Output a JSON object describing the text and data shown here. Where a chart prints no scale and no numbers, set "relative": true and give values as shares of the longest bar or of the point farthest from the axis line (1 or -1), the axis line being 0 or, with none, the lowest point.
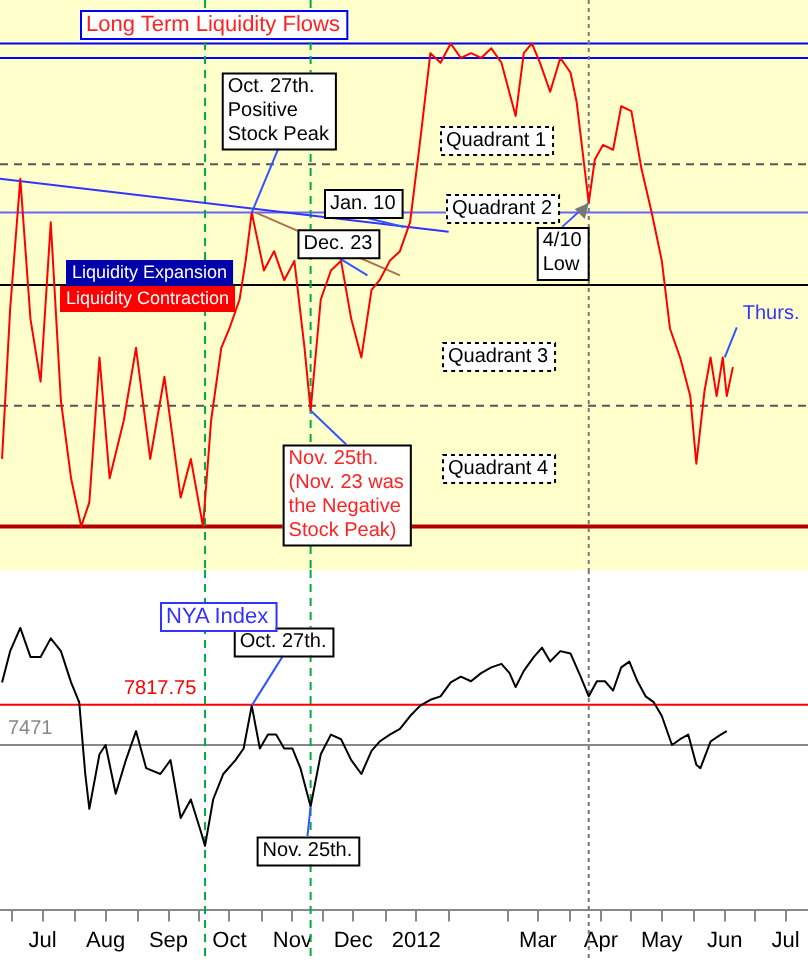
{
  "chart_data": [
    {
      "type": "line",
      "title": "Long Term Liquidity Flows",
      "relative": true,
      "tick_labels": false,
      "legend": false,
      "marker": "none",
      "grid": false,
      "xlim": [
        "2011-06-25",
        "2012-07-27"
      ],
      "series": [
        {
          "color": "#ff0000",
          "x": [
            "2011-06-26",
            "2011-06-30",
            "2011-07-05",
            "2011-07-10",
            "2011-07-15",
            "2011-07-20",
            "2011-07-25",
            "2011-07-30",
            "2011-08-04",
            "2011-08-08",
            "2011-08-13",
            "2011-08-18",
            "2011-08-25",
            "2011-08-31",
            "2011-09-07",
            "2011-09-14",
            "2011-09-22",
            "2011-09-27",
            "2011-10-03",
            "2011-10-07",
            "2011-10-12",
            "2011-10-16",
            "2011-10-21",
            "2011-10-24",
            "2011-10-27",
            "2011-11-02",
            "2011-11-07",
            "2011-11-12",
            "2011-11-17",
            "2011-11-22",
            "2011-11-25",
            "2011-11-30",
            "2011-12-05",
            "2011-12-10",
            "2011-12-15",
            "2011-12-20",
            "2011-12-25",
            "2011-12-29",
            "2012-01-03",
            "2012-01-08",
            "2012-01-13",
            "2012-01-18",
            "2012-01-23",
            "2012-01-28",
            "2012-02-02",
            "2012-02-07",
            "2012-02-12",
            "2012-02-17",
            "2012-02-22",
            "2012-02-27",
            "2012-03-05",
            "2012-03-09",
            "2012-03-13",
            "2012-03-17",
            "2012-03-22",
            "2012-03-27",
            "2012-04-01",
            "2012-04-04",
            "2012-04-10",
            "2012-04-13",
            "2012-04-17",
            "2012-04-22",
            "2012-04-26",
            "2012-05-01",
            "2012-05-06",
            "2012-05-11",
            "2012-05-16",
            "2012-05-20",
            "2012-05-25",
            "2012-05-30",
            "2012-06-02",
            "2012-06-06",
            "2012-06-09",
            "2012-06-12",
            "2012-06-15",
            "2012-06-17",
            "2012-06-20"
          ],
          "values": [
            0.14,
            0.45,
            0.72,
            0.43,
            0.3,
            0.63,
            0.26,
            0.1,
            0,
            0.05,
            0.35,
            0.1,
            0.22,
            0.37,
            0.14,
            0.31,
            0.06,
            0.14,
            0,
            0.22,
            0.37,
            0.41,
            0.47,
            0.55,
            0.65,
            0.53,
            0.57,
            0.51,
            0.55,
            0.37,
            0.24,
            0.47,
            0.53,
            0.55,
            0.43,
            0.35,
            0.49,
            0.51,
            0.55,
            0.57,
            0.63,
            0.8,
            0.98,
            0.96,
            1,
            0.97,
            0.98,
            0.97,
            0.99,
            0.96,
            0.85,
            0.98,
            1,
            0.96,
            0.9,
            0.97,
            0.94,
            0.88,
            0.67,
            0.76,
            0.79,
            0.78,
            0.87,
            0.86,
            0.74,
            0.65,
            0.55,
            0.41,
            0.35,
            0.27,
            0.13,
            0.28,
            0.35,
            0.27,
            0.35,
            0.27,
            0.33
          ]
        },
        {
          "type": "line",
          "color": "#3333ff",
          "x": [
            "2011-06-25",
            "2012-02-01"
          ],
          "values": [
            0.72,
            0.61
          ]
        },
        {
          "type": "line",
          "color": "#b07050",
          "x": [
            "2011-10-29",
            "2012-01-08"
          ],
          "values": [
            0.65,
            0.52
          ]
        }
      ],
      "ref_lines": [
        {
          "axis": "y",
          "value": 1,
          "color": "#0000ff"
        },
        {
          "axis": "y",
          "value": 0.97,
          "color": "#0000ff"
        },
        {
          "axis": "y",
          "value": 0.75,
          "color": "#555555",
          "line_style": "dashed"
        },
        {
          "axis": "y",
          "value": 0.65,
          "color": "#6666ff"
        },
        {
          "axis": "y",
          "value": 0.5,
          "color": "#000000"
        },
        {
          "axis": "y",
          "value": 0.25,
          "color": "#555555",
          "line_style": "dashed"
        },
        {
          "axis": "x",
          "value": "2011-10-04",
          "color": "#00aa44",
          "line_style": "dashed"
        },
        {
          "axis": "x",
          "value": "2011-11-25",
          "color": "#00aa44",
          "line_style": "dashed"
        },
        {
          "axis": "x",
          "value": "2012-04-10",
          "color": "#777777",
          "line_style": "dotted"
        }
      ],
      "annotations": [
        {
          "text": "Oct. 27th.\nPositive\nStock Peak",
          "x": "2011-10-27",
          "y": 0.65
        },
        {
          "text": "Jan. 10",
          "x": "2012-01-10",
          "y": 0.62
        },
        {
          "text": "Dec. 23",
          "x": "2011-12-23",
          "y": 0.52
        },
        {
          "text": "4/10\nLow",
          "x": "2012-04-10",
          "y": 0.67
        },
        {
          "text": "Nov. 25th.\n(Nov. 23 was\nthe Negative\nStock Peak)",
          "x": "2011-11-25",
          "y": 0.24
        },
        {
          "text": "Thurs.",
          "x": "2012-06-16",
          "y": 0.35
        },
        "Quadrant 1",
        "Quadrant 2",
        "Quadrant 3",
        "Quadrant 4",
        "Liquidity Expansion",
        "Liquidity Contraction"
      ]
    },
    {
      "type": "line",
      "title": "NYA Index",
      "tick_labels": "x",
      "legend": false,
      "marker": "none",
      "grid": false,
      "xlim": [
        "2011-06-25",
        "2012-07-27"
      ],
      "ylim": [
        6050,
        8980
      ],
      "xticks": [
        {
          "value": "2011-07-01",
          "label": null
        },
        {
          "value": "2011-07-16",
          "label": "Jul"
        },
        {
          "value": "2011-08-01",
          "label": null
        },
        {
          "value": "2011-08-16",
          "label": "Aug"
        },
        {
          "value": "2011-09-01",
          "label": null
        },
        {
          "value": "2011-09-16",
          "label": "Sep"
        },
        {
          "value": "2011-10-01",
          "label": null
        },
        {
          "value": "2011-10-16",
          "label": "Oct"
        },
        {
          "value": "2011-11-01",
          "label": null
        },
        {
          "value": "2011-11-16",
          "label": "Nov"
        },
        {
          "value": "2011-12-01",
          "label": null
        },
        {
          "value": "2011-12-16",
          "label": "Dec"
        },
        {
          "value": "2012-01-01",
          "label": null
        },
        {
          "value": "2012-01-16",
          "label": "2012"
        },
        {
          "value": "2012-02-01",
          "label": null
        },
        {
          "value": "2012-03-01",
          "label": null
        },
        {
          "value": "2012-03-16",
          "label": "Mar"
        },
        {
          "value": "2012-04-01",
          "label": null
        },
        {
          "value": "2012-04-16",
          "label": "Apr"
        },
        {
          "value": "2012-05-01",
          "label": null
        },
        {
          "value": "2012-05-16",
          "label": "May"
        },
        {
          "value": "2012-06-01",
          "label": null
        },
        {
          "value": "2012-06-16",
          "label": "Jun"
        },
        {
          "value": "2012-07-01",
          "label": null
        },
        {
          "value": "2012-07-16",
          "label": "Jul"
        }
      ],
      "series": [
        {
          "color": "#000000",
          "x": [
            "2011-06-26",
            "2011-06-30",
            "2011-07-05",
            "2011-07-10",
            "2011-07-15",
            "2011-07-20",
            "2011-07-25",
            "2011-07-30",
            "2011-08-03",
            "2011-08-06",
            "2011-08-08",
            "2011-08-13",
            "2011-08-16",
            "2011-08-21",
            "2011-08-26",
            "2011-08-31",
            "2011-09-05",
            "2011-09-12",
            "2011-09-17",
            "2011-09-22",
            "2011-09-27",
            "2011-10-02",
            "2011-10-04",
            "2011-10-08",
            "2011-10-13",
            "2011-10-19",
            "2011-10-23",
            "2011-10-27",
            "2011-10-31",
            "2011-11-04",
            "2011-11-08",
            "2011-11-12",
            "2011-11-16",
            "2011-11-20",
            "2011-11-25",
            "2011-11-30",
            "2011-12-05",
            "2011-12-10",
            "2011-12-15",
            "2011-12-20",
            "2011-12-25",
            "2011-12-29",
            "2012-01-03",
            "2012-01-08",
            "2012-01-13",
            "2012-01-18",
            "2012-01-23",
            "2012-01-28",
            "2012-02-02",
            "2012-02-07",
            "2012-02-12",
            "2012-02-17",
            "2012-02-22",
            "2012-02-27",
            "2012-03-02",
            "2012-03-05",
            "2012-03-09",
            "2012-03-14",
            "2012-03-18",
            "2012-03-22",
            "2012-03-27",
            "2012-04-01",
            "2012-04-06",
            "2012-04-10",
            "2012-04-14",
            "2012-04-18",
            "2012-04-22",
            "2012-04-26",
            "2012-04-30",
            "2012-05-04",
            "2012-05-08",
            "2012-05-12",
            "2012-05-16",
            "2012-05-21",
            "2012-05-25",
            "2012-05-29",
            "2012-06-02",
            "2012-06-04",
            "2012-06-09",
            "2012-06-14",
            "2012-06-17"
          ],
          "values": [
            8010,
            8280,
            8480,
            8230,
            8230,
            8390,
            8280,
            8010,
            7840,
            7220,
            6920,
            7390,
            7470,
            7050,
            7340,
            7590,
            7270,
            7220,
            7340,
            6840,
            7000,
            6720,
            6600,
            7000,
            7220,
            7340,
            7440,
            7810,
            7440,
            7560,
            7560,
            7440,
            7440,
            7270,
            6940,
            7390,
            7560,
            7520,
            7340,
            7220,
            7420,
            7500,
            7560,
            7610,
            7720,
            7810,
            7860,
            7890,
            8010,
            8060,
            8020,
            8090,
            8140,
            8170,
            8090,
            7970,
            8110,
            8230,
            8310,
            8190,
            8280,
            8260,
            8060,
            7890,
            8020,
            8020,
            7940,
            8140,
            8190,
            8020,
            7890,
            7840,
            7720,
            7470,
            7520,
            7560,
            7300,
            7270,
            7500,
            7560,
            7590
          ]
        }
      ],
      "ref_lines": [
        {
          "axis": "y",
          "value": 7817.75,
          "label": "7817.75",
          "color": "#ff0000"
        },
        {
          "axis": "y",
          "value": 7471,
          "label": "7471",
          "color": "#888888"
        },
        {
          "axis": "x",
          "value": "2011-10-04",
          "color": "#00aa44",
          "line_style": "dashed"
        },
        {
          "axis": "x",
          "value": "2011-11-25",
          "color": "#00aa44",
          "line_style": "dashed"
        },
        {
          "axis": "x",
          "value": "2012-04-10",
          "color": "#777777",
          "line_style": "dotted"
        }
      ],
      "annotations": [
        {
          "text": "Oct. 27th.",
          "x": "2011-10-27",
          "y": 7810
        },
        {
          "text": "Nov. 25th.",
          "x": "2011-11-25",
          "y": 6940
        }
      ]
    }
  ]
}
